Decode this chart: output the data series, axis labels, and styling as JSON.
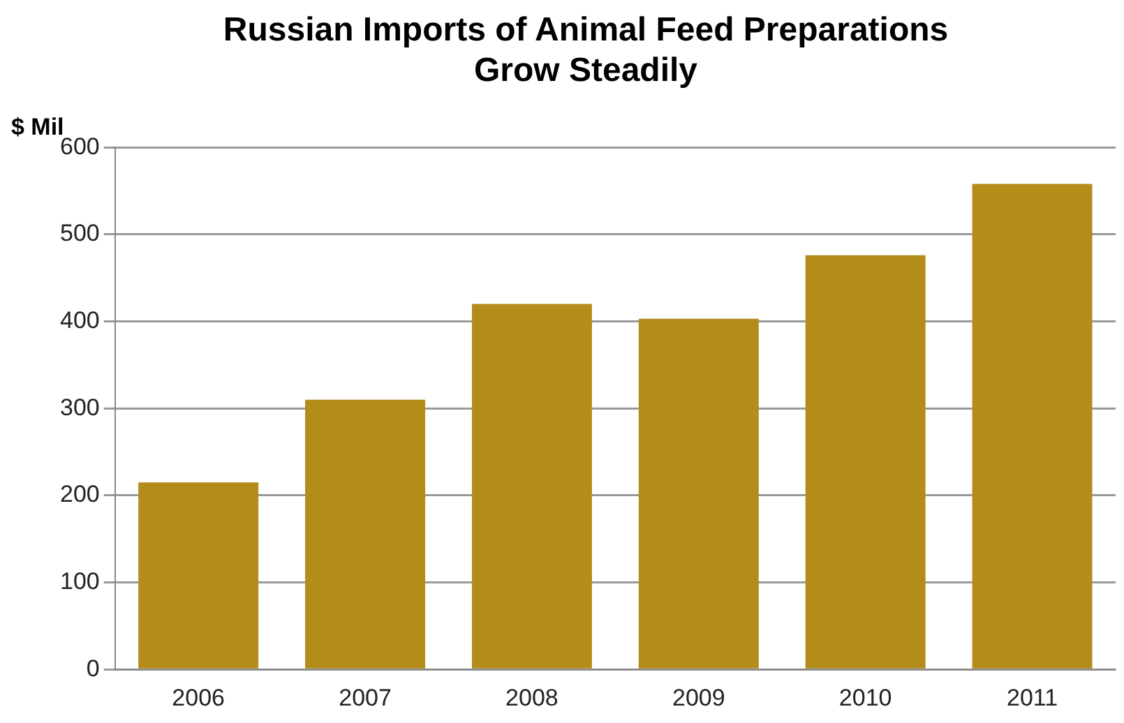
{
  "chart_data": {
    "type": "bar",
    "title": "Russian Imports of Animal Feed Preparations\nGrow Steadily",
    "ylabel": "$ Mil",
    "categories": [
      "2006",
      "2007",
      "2008",
      "2009",
      "2010",
      "2011"
    ],
    "values": [
      215,
      310,
      420,
      403,
      476,
      558
    ],
    "color": "#b48c1a",
    "ylim": [
      0,
      600
    ],
    "yticks": [
      0,
      100,
      200,
      300,
      400,
      500,
      600
    ],
    "grid": "y",
    "legend": false
  }
}
